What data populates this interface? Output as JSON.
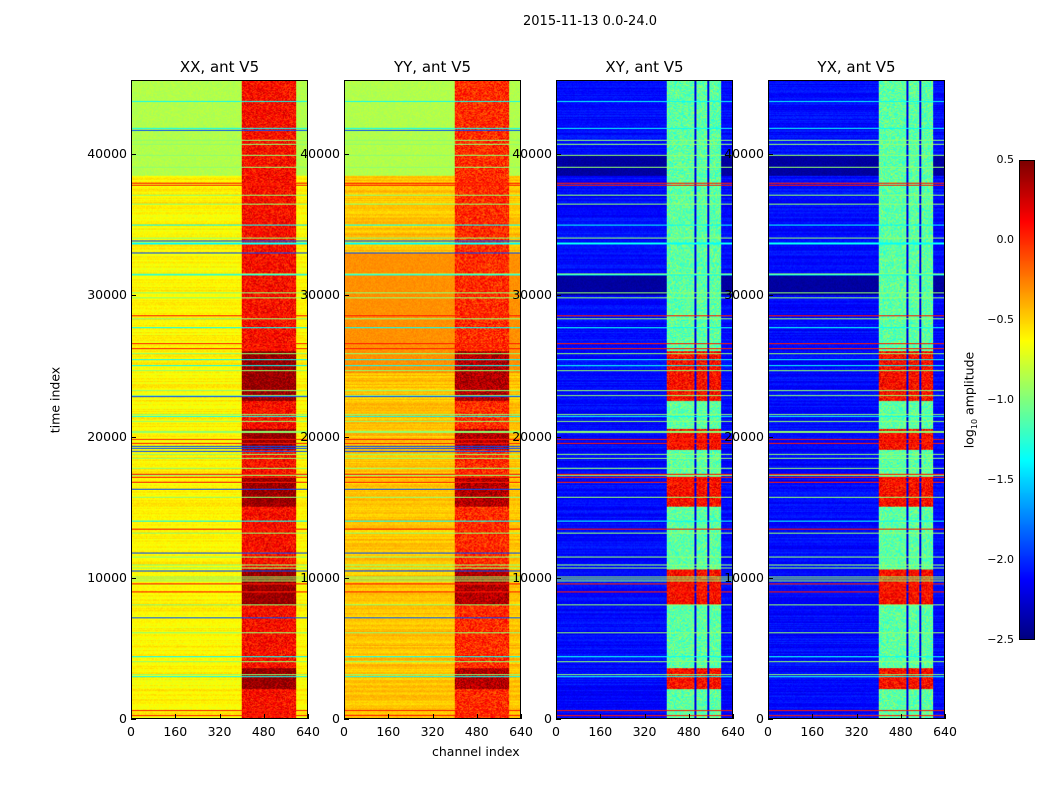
{
  "chart_data": {
    "type": "heatmap",
    "title": "2015-11-13 0.0-24.0",
    "xlabel": "channel index",
    "ylabel": "time index",
    "xlim": [
      0,
      640
    ],
    "ylim": [
      0,
      45250
    ],
    "xticks": [
      0,
      160,
      320,
      480,
      640
    ],
    "yticks": [
      0,
      10000,
      20000,
      30000,
      40000
    ],
    "panels": [
      {
        "title": "XX, ant V5",
        "background_log10": -0.6,
        "hot_channels": [
          400,
          600
        ],
        "hot_log10": 0.1
      },
      {
        "title": "YY, ant V5",
        "background_log10": -0.45,
        "hot_channels": [
          400,
          600
        ],
        "hot_log10": 0.0
      },
      {
        "title": "XY, ant V5",
        "background_log10": -2.1,
        "hot_channels": [
          400,
          600
        ],
        "hot_log10": -1.1
      },
      {
        "title": "YX, ant V5",
        "background_log10": -2.1,
        "hot_channels": [
          400,
          600
        ],
        "hot_log10": -1.1
      }
    ],
    "colorbar": {
      "label_prefix": "log",
      "label_sub": "10",
      "label_suffix": " amplitude",
      "range": [
        -2.5,
        0.5
      ],
      "ticks": [
        "0.5",
        "0.0",
        "−0.5",
        "−1.0",
        "−1.5",
        "−2.0",
        "−2.5"
      ],
      "colormap": "jet"
    }
  }
}
